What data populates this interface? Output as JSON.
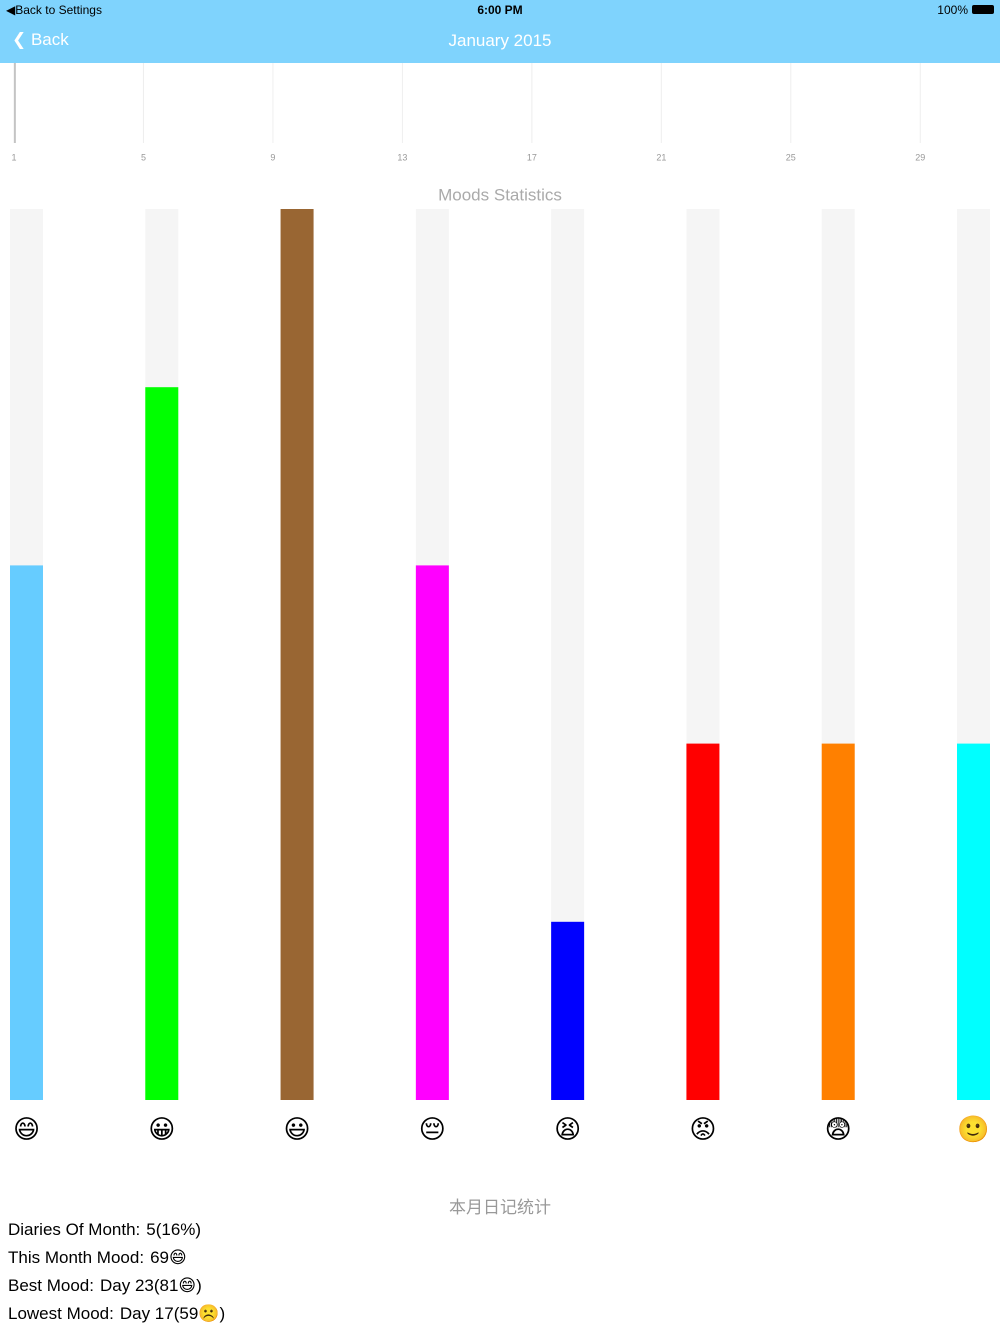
{
  "status_bar": {
    "back": "Back to Settings",
    "time": "6:00 PM",
    "battery": "100%"
  },
  "nav": {
    "back": "Back",
    "title": "January 2015"
  },
  "chart_data": [
    {
      "type": "line",
      "xlim": [
        1,
        31
      ],
      "xticks": [
        1,
        5,
        9,
        13,
        17,
        21,
        25,
        29
      ],
      "grid": true
    },
    {
      "type": "bar",
      "title": "Moods Statistics",
      "categories": [
        "😄",
        "😀",
        "😃",
        "😔",
        "😫",
        "😡",
        "😨",
        "🙂"
      ],
      "values": [
        3,
        4,
        5,
        3,
        1,
        2,
        2,
        2
      ],
      "colors": [
        "#66ccff",
        "#00ff00",
        "#996633",
        "#ff00ff",
        "#0000ff",
        "#ff0000",
        "#ff8000",
        "#00ffff"
      ],
      "ylim": [
        0,
        5
      ]
    }
  ],
  "stats": {
    "title": "本月日记统计",
    "rows": [
      {
        "label": "Diaries Of Month:",
        "value": "5(16%)"
      },
      {
        "label": "This Month Mood:",
        "value": "69😄"
      },
      {
        "label": "Best Mood:",
        "value": "Day 23(81😄)"
      },
      {
        "label": "Lowest Mood:",
        "value": "Day 17(59☹️)"
      }
    ]
  }
}
